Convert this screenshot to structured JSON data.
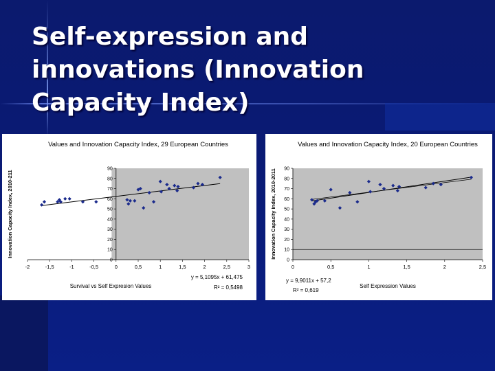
{
  "slide": {
    "title": "Self-expression and\ninnovations (Innovation\nCapacity Index)"
  },
  "colors": {
    "plot_bg": "#c0c0c0",
    "marker": "#1a2a8c",
    "trend": "#000000"
  },
  "chart_data": [
    {
      "type": "scatter",
      "title": "Values and Innovation Capacity Index, 29 European Countries",
      "xlabel": "Survival vs Self Expresion Values",
      "ylabel": "Innovation Capacity Index, 2010-211",
      "xlim": [
        -2,
        3
      ],
      "ylim": [
        0,
        90
      ],
      "xticks": [
        "-2",
        "-1,5",
        "-1",
        "-0,5",
        "0",
        "0,5",
        "1",
        "1,5",
        "2",
        "2,5",
        "3"
      ],
      "yticks": [
        "0",
        "10",
        "20",
        "30",
        "40",
        "50",
        "60",
        "70",
        "80",
        "90"
      ],
      "points": [
        {
          "x": -1.68,
          "y": 54
        },
        {
          "x": -1.62,
          "y": 57
        },
        {
          "x": -1.32,
          "y": 57
        },
        {
          "x": -1.28,
          "y": 59
        },
        {
          "x": -1.25,
          "y": 57
        },
        {
          "x": -1.15,
          "y": 60
        },
        {
          "x": -1.05,
          "y": 60
        },
        {
          "x": -0.75,
          "y": 57
        },
        {
          "x": -0.45,
          "y": 57
        },
        {
          "x": 0.25,
          "y": 59
        },
        {
          "x": 0.28,
          "y": 55
        },
        {
          "x": 0.32,
          "y": 58
        },
        {
          "x": 0.42,
          "y": 58
        },
        {
          "x": 0.5,
          "y": 69
        },
        {
          "x": 0.62,
          "y": 51
        },
        {
          "x": 0.75,
          "y": 66
        },
        {
          "x": 0.85,
          "y": 57
        },
        {
          "x": 1.0,
          "y": 77
        },
        {
          "x": 1.02,
          "y": 67
        },
        {
          "x": 1.15,
          "y": 74
        },
        {
          "x": 1.2,
          "y": 70
        },
        {
          "x": 1.32,
          "y": 73
        },
        {
          "x": 1.38,
          "y": 68
        },
        {
          "x": 1.4,
          "y": 72
        },
        {
          "x": 1.75,
          "y": 71
        },
        {
          "x": 1.85,
          "y": 75
        },
        {
          "x": 1.95,
          "y": 74
        },
        {
          "x": 2.35,
          "y": 81
        },
        {
          "x": 0.55,
          "y": 70
        }
      ],
      "trendline": {
        "x": [
          -1.68,
          2.35
        ]
      },
      "equation": "y = 5,1095x + 61,475",
      "r_squared": "R² = 0,5498"
    },
    {
      "type": "scatter",
      "title": "Values and Innovation Capacity Index, 20 European Countries",
      "xlabel": "Self Expression Values",
      "ylabel": "Innovation Capacity Index, 2010-2011",
      "xlim": [
        0,
        2.5
      ],
      "ylim": [
        0,
        90
      ],
      "xticks": [
        "0",
        "0,5",
        "1",
        "1,5",
        "2",
        "2,5"
      ],
      "yticks": [
        "0",
        "10",
        "20",
        "30",
        "40",
        "50",
        "60",
        "70",
        "80",
        "90"
      ],
      "points": [
        {
          "x": 0.25,
          "y": 59
        },
        {
          "x": 0.28,
          "y": 55
        },
        {
          "x": 0.32,
          "y": 58
        },
        {
          "x": 0.42,
          "y": 58
        },
        {
          "x": 0.5,
          "y": 69
        },
        {
          "x": 0.62,
          "y": 51
        },
        {
          "x": 0.75,
          "y": 66
        },
        {
          "x": 0.85,
          "y": 57
        },
        {
          "x": 1.0,
          "y": 77
        },
        {
          "x": 1.02,
          "y": 67
        },
        {
          "x": 1.15,
          "y": 74
        },
        {
          "x": 1.2,
          "y": 70
        },
        {
          "x": 1.32,
          "y": 73
        },
        {
          "x": 1.38,
          "y": 68
        },
        {
          "x": 1.4,
          "y": 72
        },
        {
          "x": 1.75,
          "y": 71
        },
        {
          "x": 1.85,
          "y": 75
        },
        {
          "x": 1.95,
          "y": 74
        },
        {
          "x": 2.35,
          "y": 81
        },
        {
          "x": 0.3,
          "y": 57
        }
      ],
      "trendline": {
        "x": [
          0.25,
          2.35
        ]
      },
      "equation": "y = 9,9011x + 57,2",
      "r_squared": "R² = 0,619"
    }
  ]
}
